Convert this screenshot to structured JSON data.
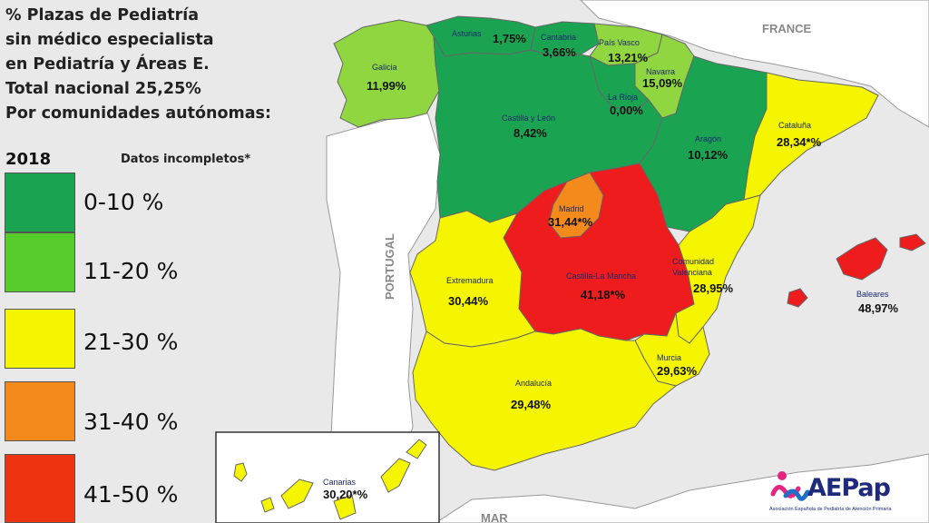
{
  "title_lines": [
    "% Plazas de Pediatría",
    "sin médico especialista",
    "en Pediatría y Áreas E.",
    "Total nacional 25,25%",
    "Por comunidades autónomas:"
  ],
  "year": "2018",
  "incomplete_note": "Datos incompletos*",
  "legend": [
    {
      "label": "0-10 %",
      "color": "#1aa452"
    },
    {
      "label": "11-20 %",
      "color": "#55cc2a"
    },
    {
      "label": "21-30 %",
      "color": "#f5f500"
    },
    {
      "label": "31-40 %",
      "color": "#f58a1c"
    },
    {
      "label": "41-50 %",
      "color": "#ee3311"
    }
  ],
  "countries": {
    "france": "FRANCE",
    "portugal": "PORTUGAL",
    "sea": "MAR"
  },
  "regions": {
    "galicia": {
      "name": "Galicia",
      "value": "11,99%",
      "color": "#8fd640"
    },
    "asturias": {
      "name": "Asturias",
      "value": "1,75%",
      "color": "#1aa452"
    },
    "cantabria": {
      "name": "Cantabria",
      "value": "3,66%",
      "color": "#1aa452"
    },
    "pais_vasco": {
      "name": "País Vasco",
      "value": "13,21%",
      "color": "#8fd640"
    },
    "navarra": {
      "name": "Navarra",
      "value": "15,09%",
      "color": "#8fd640"
    },
    "la_rioja": {
      "name": "La Rioja",
      "value": "0,00%",
      "color": "#1aa452"
    },
    "castilla_leon": {
      "name": "Castilla y León",
      "value": "8,42%",
      "color": "#1aa452"
    },
    "aragon": {
      "name": "Aragón",
      "value": "10,12%",
      "color": "#1aa452"
    },
    "cataluna": {
      "name": "Cataluña",
      "value": "28,34*%",
      "color": "#f5f500"
    },
    "madrid": {
      "name": "Madrid",
      "value": "31,44*%",
      "color": "#f58a1c"
    },
    "castilla_la_mancha": {
      "name": "Castilla-La Mancha",
      "value": "41,18*%",
      "color": "#ee1c1c"
    },
    "extremadura": {
      "name": "Extremadura",
      "value": "30,44%",
      "color": "#f5f500"
    },
    "valenciana": {
      "name": "Comunidad Valenciana",
      "value": "28,95%",
      "color": "#f5f500"
    },
    "baleares": {
      "name": "Baleares",
      "value": "48,97%",
      "color": "#ee1c1c"
    },
    "murcia": {
      "name": "Murcia",
      "value": "29,63%",
      "color": "#f5f500"
    },
    "andalucia": {
      "name": "Andalucía",
      "value": "29,48%",
      "color": "#f5f500"
    },
    "canarias": {
      "name": "Canarias",
      "value": "30,20*%",
      "color": "#f5f500"
    }
  },
  "logo": {
    "text": "AEPap",
    "subtitle": "Asociación Española de Pediatría de Atención Primaria"
  }
}
